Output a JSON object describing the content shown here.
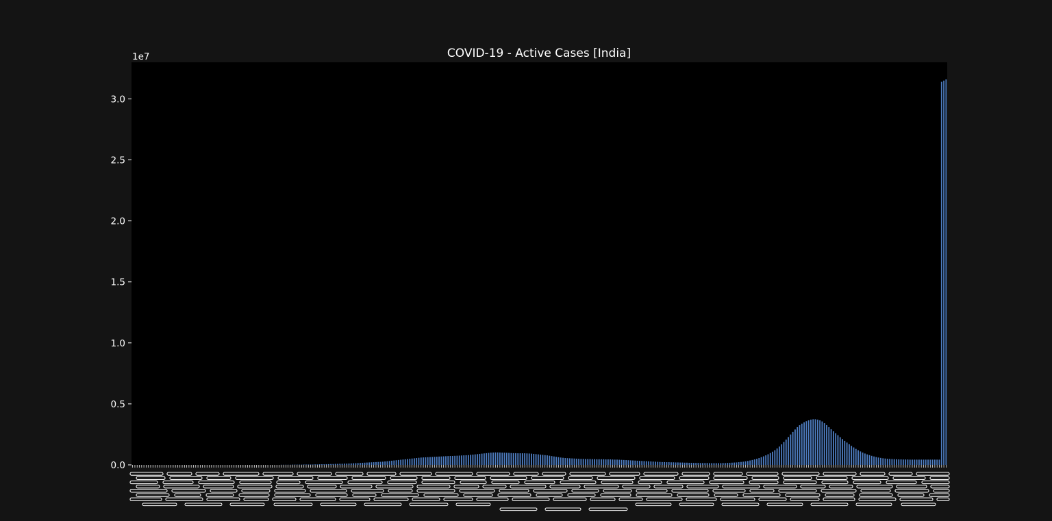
{
  "chart_data": {
    "type": "bar",
    "title": "COVID-19 - Active Cases [India]",
    "xlabel": "",
    "ylabel": "",
    "y_offset_label": "1e7",
    "ylim": [
      0,
      3.3
    ],
    "y_scale_note": "values in units of 1e7 active cases",
    "yticks": [
      "0.0",
      "0.5",
      "1.0",
      "1.5",
      "2.0",
      "2.5",
      "3.0"
    ],
    "ytick_values": [
      0,
      0.5,
      1.0,
      1.5,
      2.0,
      2.5,
      3.0
    ],
    "grid": false,
    "legend": "none",
    "x_tick_labels_note": "one date tick label per bar, rotated vertically; labels overlap and are illegible in the source",
    "series": [
      {
        "values": [
          0.0,
          0.0,
          0.0,
          0.0,
          0.0,
          0.0,
          0.0,
          0.0,
          0.0,
          0.0,
          0.0,
          0.0,
          0.0,
          0.0,
          0.0,
          0.0,
          0.0,
          0.0,
          0.0,
          0.0,
          0.0,
          0.0,
          0.0,
          0.0,
          0.0,
          0.0,
          0.0,
          0.0,
          0.0,
          0.0,
          0.0,
          0.0,
          0.0,
          0.0,
          0.0,
          0.0,
          0.0,
          0.0,
          0.0,
          0.0,
          0.0,
          0.0,
          0.0,
          0.0,
          0.0,
          0.0,
          0.0,
          0.0,
          0.0,
          0.0,
          0.0,
          0.0,
          0.0,
          0.0,
          0.0,
          0.0,
          0.0,
          0.0,
          0.0,
          0.0,
          0.0,
          0.0,
          0.0,
          0.0,
          0.0,
          0.0,
          0.001,
          0.001,
          0.001,
          0.001,
          0.001,
          0.002,
          0.002,
          0.002,
          0.002,
          0.002,
          0.003,
          0.003,
          0.003,
          0.003,
          0.003,
          0.004,
          0.004,
          0.005,
          0.005,
          0.005,
          0.006,
          0.006,
          0.007,
          0.007,
          0.008,
          0.008,
          0.009,
          0.009,
          0.01,
          0.01,
          0.011,
          0.012,
          0.013,
          0.014,
          0.015,
          0.016,
          0.017,
          0.018,
          0.019,
          0.02,
          0.021,
          0.022,
          0.023,
          0.024,
          0.025,
          0.026,
          0.028,
          0.03,
          0.032,
          0.034,
          0.036,
          0.038,
          0.04,
          0.042,
          0.044,
          0.046,
          0.048,
          0.05,
          0.052,
          0.054,
          0.056,
          0.058,
          0.06,
          0.061,
          0.062,
          0.063,
          0.064,
          0.065,
          0.066,
          0.067,
          0.068,
          0.069,
          0.07,
          0.071,
          0.072,
          0.073,
          0.073,
          0.074,
          0.075,
          0.076,
          0.077,
          0.078,
          0.079,
          0.08,
          0.082,
          0.084,
          0.086,
          0.088,
          0.09,
          0.092,
          0.094,
          0.096,
          0.098,
          0.1,
          0.101,
          0.102,
          0.102,
          0.101,
          0.1,
          0.1,
          0.099,
          0.098,
          0.097,
          0.096,
          0.096,
          0.095,
          0.095,
          0.095,
          0.095,
          0.094,
          0.093,
          0.092,
          0.09,
          0.088,
          0.086,
          0.084,
          0.082,
          0.08,
          0.078,
          0.075,
          0.072,
          0.069,
          0.066,
          0.063,
          0.06,
          0.058,
          0.056,
          0.055,
          0.054,
          0.053,
          0.052,
          0.051,
          0.05,
          0.049,
          0.049,
          0.048,
          0.048,
          0.048,
          0.047,
          0.047,
          0.046,
          0.046,
          0.046,
          0.046,
          0.045,
          0.045,
          0.045,
          0.044,
          0.043,
          0.043,
          0.042,
          0.041,
          0.04,
          0.039,
          0.038,
          0.037,
          0.036,
          0.035,
          0.034,
          0.033,
          0.032,
          0.031,
          0.03,
          0.029,
          0.028,
          0.027,
          0.026,
          0.025,
          0.024,
          0.023,
          0.023,
          0.022,
          0.022,
          0.021,
          0.021,
          0.02,
          0.02,
          0.019,
          0.019,
          0.018,
          0.018,
          0.017,
          0.017,
          0.016,
          0.016,
          0.016,
          0.015,
          0.015,
          0.015,
          0.015,
          0.014,
          0.014,
          0.014,
          0.014,
          0.014,
          0.014,
          0.015,
          0.015,
          0.016,
          0.017,
          0.018,
          0.019,
          0.02,
          0.022,
          0.024,
          0.026,
          0.029,
          0.032,
          0.036,
          0.04,
          0.045,
          0.05,
          0.056,
          0.063,
          0.07,
          0.078,
          0.087,
          0.097,
          0.108,
          0.12,
          0.134,
          0.15,
          0.168,
          0.187,
          0.207,
          0.228,
          0.249,
          0.27,
          0.29,
          0.309,
          0.325,
          0.338,
          0.349,
          0.358,
          0.365,
          0.371,
          0.374,
          0.374,
          0.371,
          0.365,
          0.356,
          0.342,
          0.326,
          0.309,
          0.292,
          0.275,
          0.259,
          0.243,
          0.227,
          0.212,
          0.197,
          0.183,
          0.169,
          0.156,
          0.143,
          0.131,
          0.12,
          0.11,
          0.101,
          0.093,
          0.086,
          0.08,
          0.074,
          0.069,
          0.064,
          0.06,
          0.057,
          0.054,
          0.052,
          0.05,
          0.049,
          0.048,
          0.047,
          0.046,
          0.045,
          0.045,
          0.044,
          0.044,
          0.044,
          0.043,
          0.043,
          0.043,
          0.043,
          0.043,
          0.043,
          0.043,
          0.043,
          0.043,
          0.043,
          0.043,
          0.043,
          0.043,
          0.043,
          3.14,
          3.15,
          3.16
        ]
      }
    ]
  },
  "colors": {
    "figure_bg": "#141414",
    "axes_bg": "#000000",
    "bar": "#4f7ec2",
    "text": "#ffffff"
  }
}
